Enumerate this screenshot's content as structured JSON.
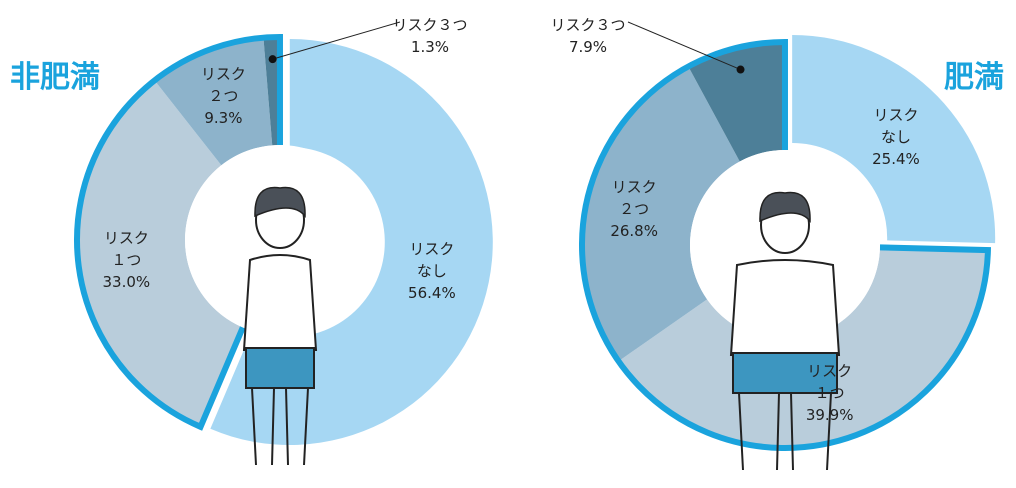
{
  "chart_data": [
    {
      "type": "donut",
      "title": "非肥満",
      "categories": [
        "リスク\nなし",
        "リスク\n１つ",
        "リスク\n２つ",
        "リスク３つ"
      ],
      "values": [
        56.4,
        33.0,
        9.3,
        1.3
      ],
      "value_labels": [
        "56.4%",
        "33.0%",
        "9.3%",
        "1.3%"
      ],
      "colors": [
        "#a6d7f3",
        "#b9cddb",
        "#8db3cb",
        "#4d7f98"
      ]
    },
    {
      "type": "donut",
      "title": "肥満",
      "categories": [
        "リスク\nなし",
        "リスク\n１つ",
        "リスク\n２つ",
        "リスク３つ"
      ],
      "values": [
        25.4,
        39.9,
        26.8,
        7.9
      ],
      "value_labels": [
        "25.4%",
        "39.9%",
        "26.8%",
        "7.9%"
      ],
      "colors": [
        "#a6d7f3",
        "#b9cddb",
        "#8db3cb",
        "#4d7f98"
      ]
    }
  ]
}
